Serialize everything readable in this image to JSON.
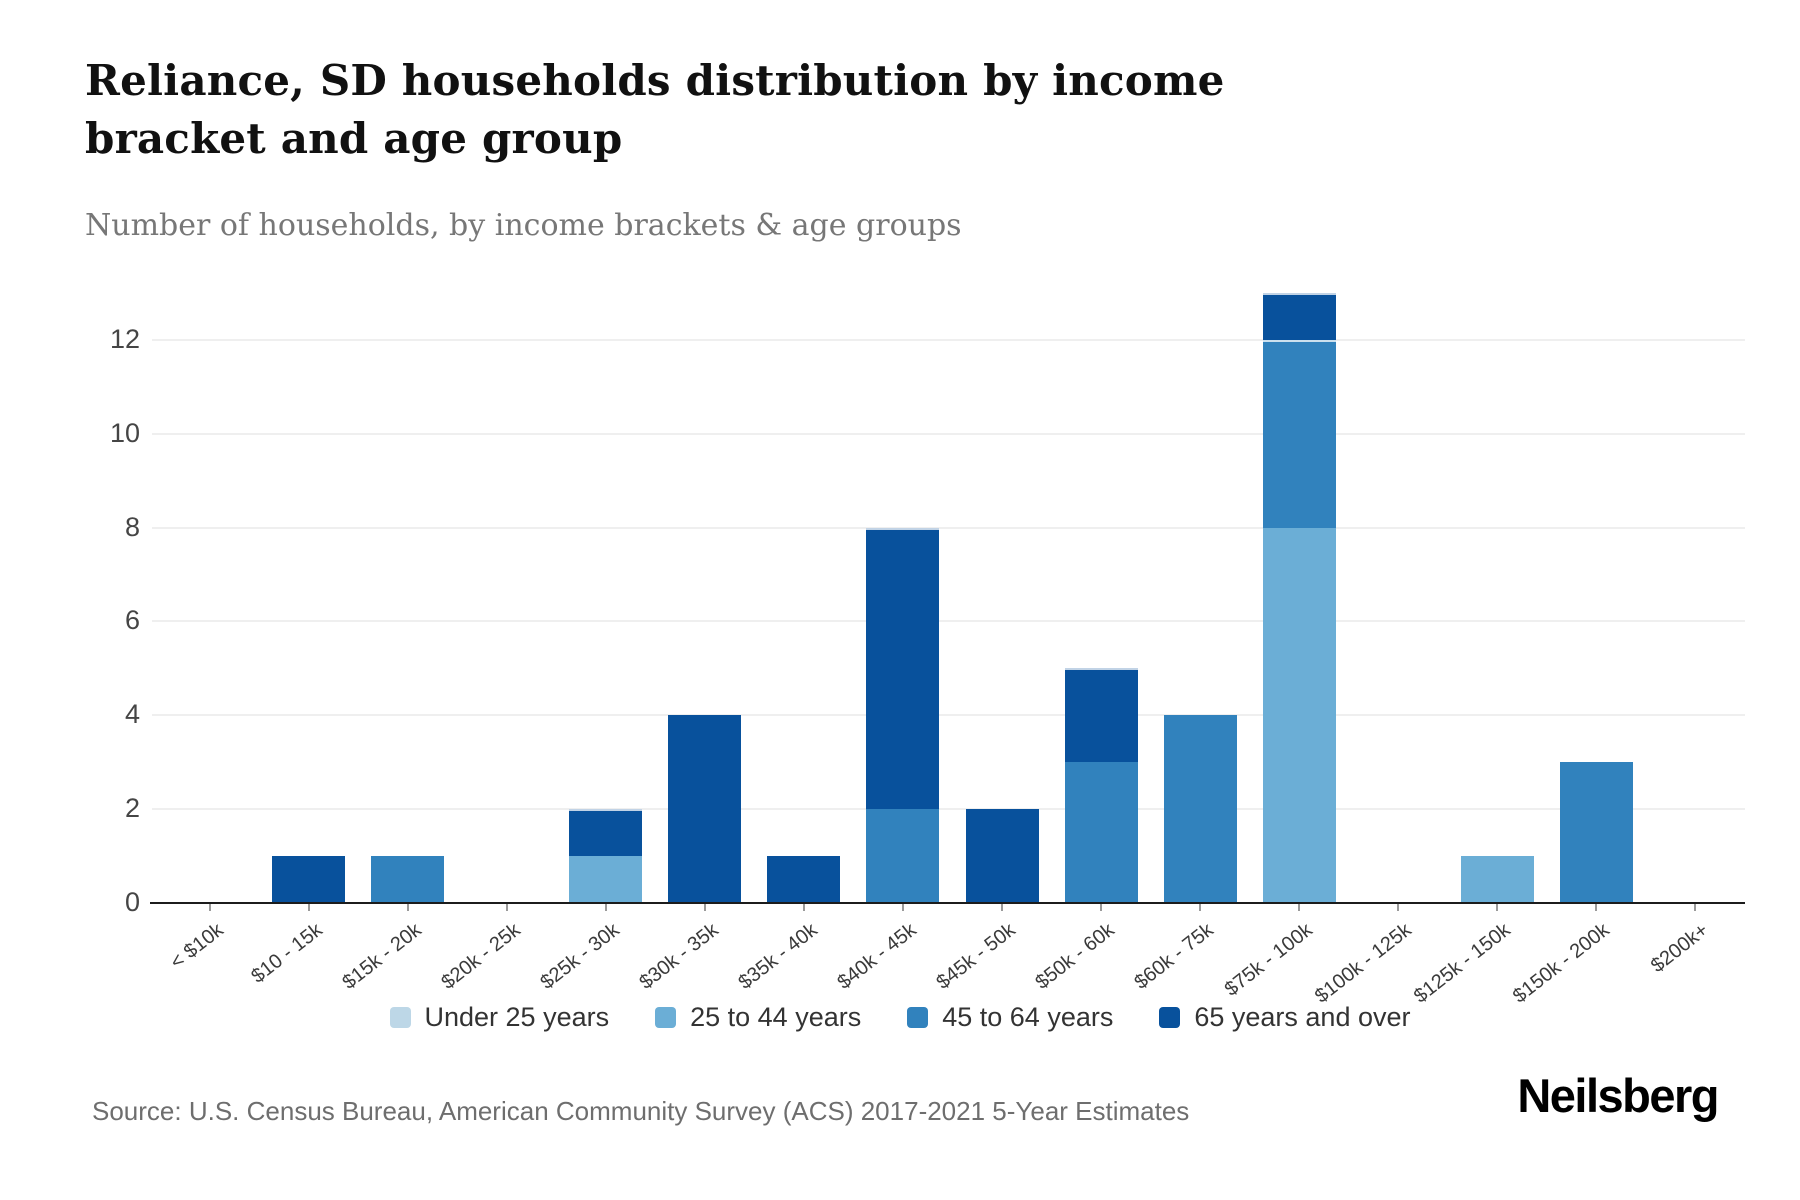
{
  "header": {
    "title": "Reliance, SD households distribution by income bracket and age group",
    "subtitle": "Number of households, by income brackets & age groups"
  },
  "chart_data": {
    "type": "bar",
    "stacked": true,
    "title": "Reliance, SD households distribution by income bracket and age group",
    "xlabel": "",
    "ylabel": "Number of households",
    "categories": [
      "< $10k",
      "$10 - 15k",
      "$15k - 20k",
      "$20k - 25k",
      "$25k - 30k",
      "$30k - 35k",
      "$35k - 40k",
      "$40k - 45k",
      "$45k - 50k",
      "$50k - 60k",
      "$60k - 75k",
      "$75k - 100k",
      "$100k - 125k",
      "$125k - 150k",
      "$150k - 200k",
      "$200k+"
    ],
    "series": [
      {
        "name": "Under 25 years",
        "color": "#bdd7e7",
        "values": [
          0,
          0,
          0,
          0,
          0,
          0,
          0,
          0,
          0,
          0,
          0,
          0,
          0,
          0,
          0,
          0
        ]
      },
      {
        "name": "25 to 44 years",
        "color": "#6baed6",
        "values": [
          0,
          0,
          0,
          0,
          1,
          0,
          0,
          0,
          0,
          0,
          0,
          8,
          0,
          1,
          0,
          0
        ]
      },
      {
        "name": "45 to 64 years",
        "color": "#3182bd",
        "values": [
          0,
          0,
          1,
          0,
          0,
          0,
          0,
          2,
          0,
          3,
          4,
          4,
          0,
          0,
          3,
          0
        ]
      },
      {
        "name": "65 years and over",
        "color": "#08519c",
        "values": [
          0,
          1,
          0,
          0,
          1,
          4,
          1,
          6,
          2,
          2,
          0,
          1,
          0,
          0,
          0,
          0
        ]
      }
    ],
    "totals": [
      0,
      1,
      1,
      0,
      2,
      4,
      1,
      8,
      2,
      5,
      4,
      13,
      0,
      1,
      3,
      0
    ],
    "ylim": [
      0,
      13
    ],
    "yticks": [
      0,
      2,
      4,
      6,
      8,
      10,
      12
    ],
    "grid": "horizontal",
    "legend_position": "bottom"
  },
  "footer": {
    "source": "Source: U.S. Census Bureau, American Community Survey (ACS) 2017-2021 5-Year Estimates",
    "logo": "Neilsberg"
  }
}
